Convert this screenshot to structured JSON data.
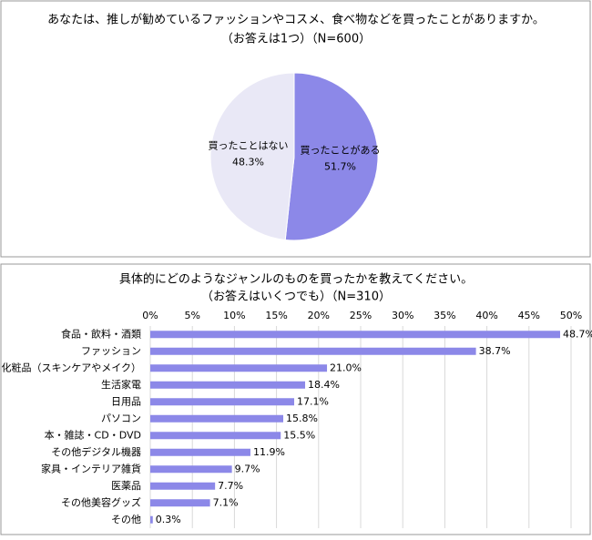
{
  "chart_data": [
    {
      "type": "pie",
      "title": "あなたは、推しが勧めているファッションやコスメ、食べ物などを買ったことがありますか。",
      "subtitle": "（お答えは1つ）（N=600）",
      "categories": [
        "買ったことがある",
        "買ったことはない"
      ],
      "values": [
        51.7,
        48.3
      ],
      "value_labels": [
        "51.7%",
        "48.3%"
      ],
      "colors": [
        "#8c88e8",
        "#e9e8f6"
      ]
    },
    {
      "type": "hbar",
      "title": "具体的にどのようなジャンルのものを買ったかを教えてください。",
      "subtitle": "（お答えはいくつでも）（N=310）",
      "categories": [
        "食品・飲料・酒類",
        "ファッション",
        "化粧品（スキンケアやメイク）",
        "生活家電",
        "日用品",
        "パソコン",
        "本・雑誌・CD・DVD",
        "その他デジタル機器",
        "家具・インテリア雑貨",
        "医薬品",
        "その他美容グッズ",
        "その他"
      ],
      "values": [
        48.7,
        38.7,
        21.0,
        18.4,
        17.1,
        15.8,
        15.5,
        11.9,
        9.7,
        7.7,
        7.1,
        0.3
      ],
      "value_labels": [
        "48.7%",
        "38.7%",
        "21.0%",
        "18.4%",
        "17.1%",
        "15.8%",
        "15.5%",
        "11.9%",
        "9.7%",
        "7.7%",
        "7.1%",
        "0.3%"
      ],
      "color": "#8c88e8",
      "xlim": [
        0,
        50
      ],
      "xticks": [
        {
          "value": 0,
          "label": "0%"
        },
        {
          "value": 5,
          "label": "5%"
        },
        {
          "value": 10,
          "label": "10%"
        },
        {
          "value": 15,
          "label": "15%"
        },
        {
          "value": 20,
          "label": "20%"
        },
        {
          "value": 25,
          "label": "25%"
        },
        {
          "value": 30,
          "label": "30%"
        },
        {
          "value": 35,
          "label": "35%"
        },
        {
          "value": 40,
          "label": "40%"
        },
        {
          "value": 45,
          "label": "45%"
        },
        {
          "value": 50,
          "label": "50%"
        }
      ],
      "grid": true
    }
  ]
}
